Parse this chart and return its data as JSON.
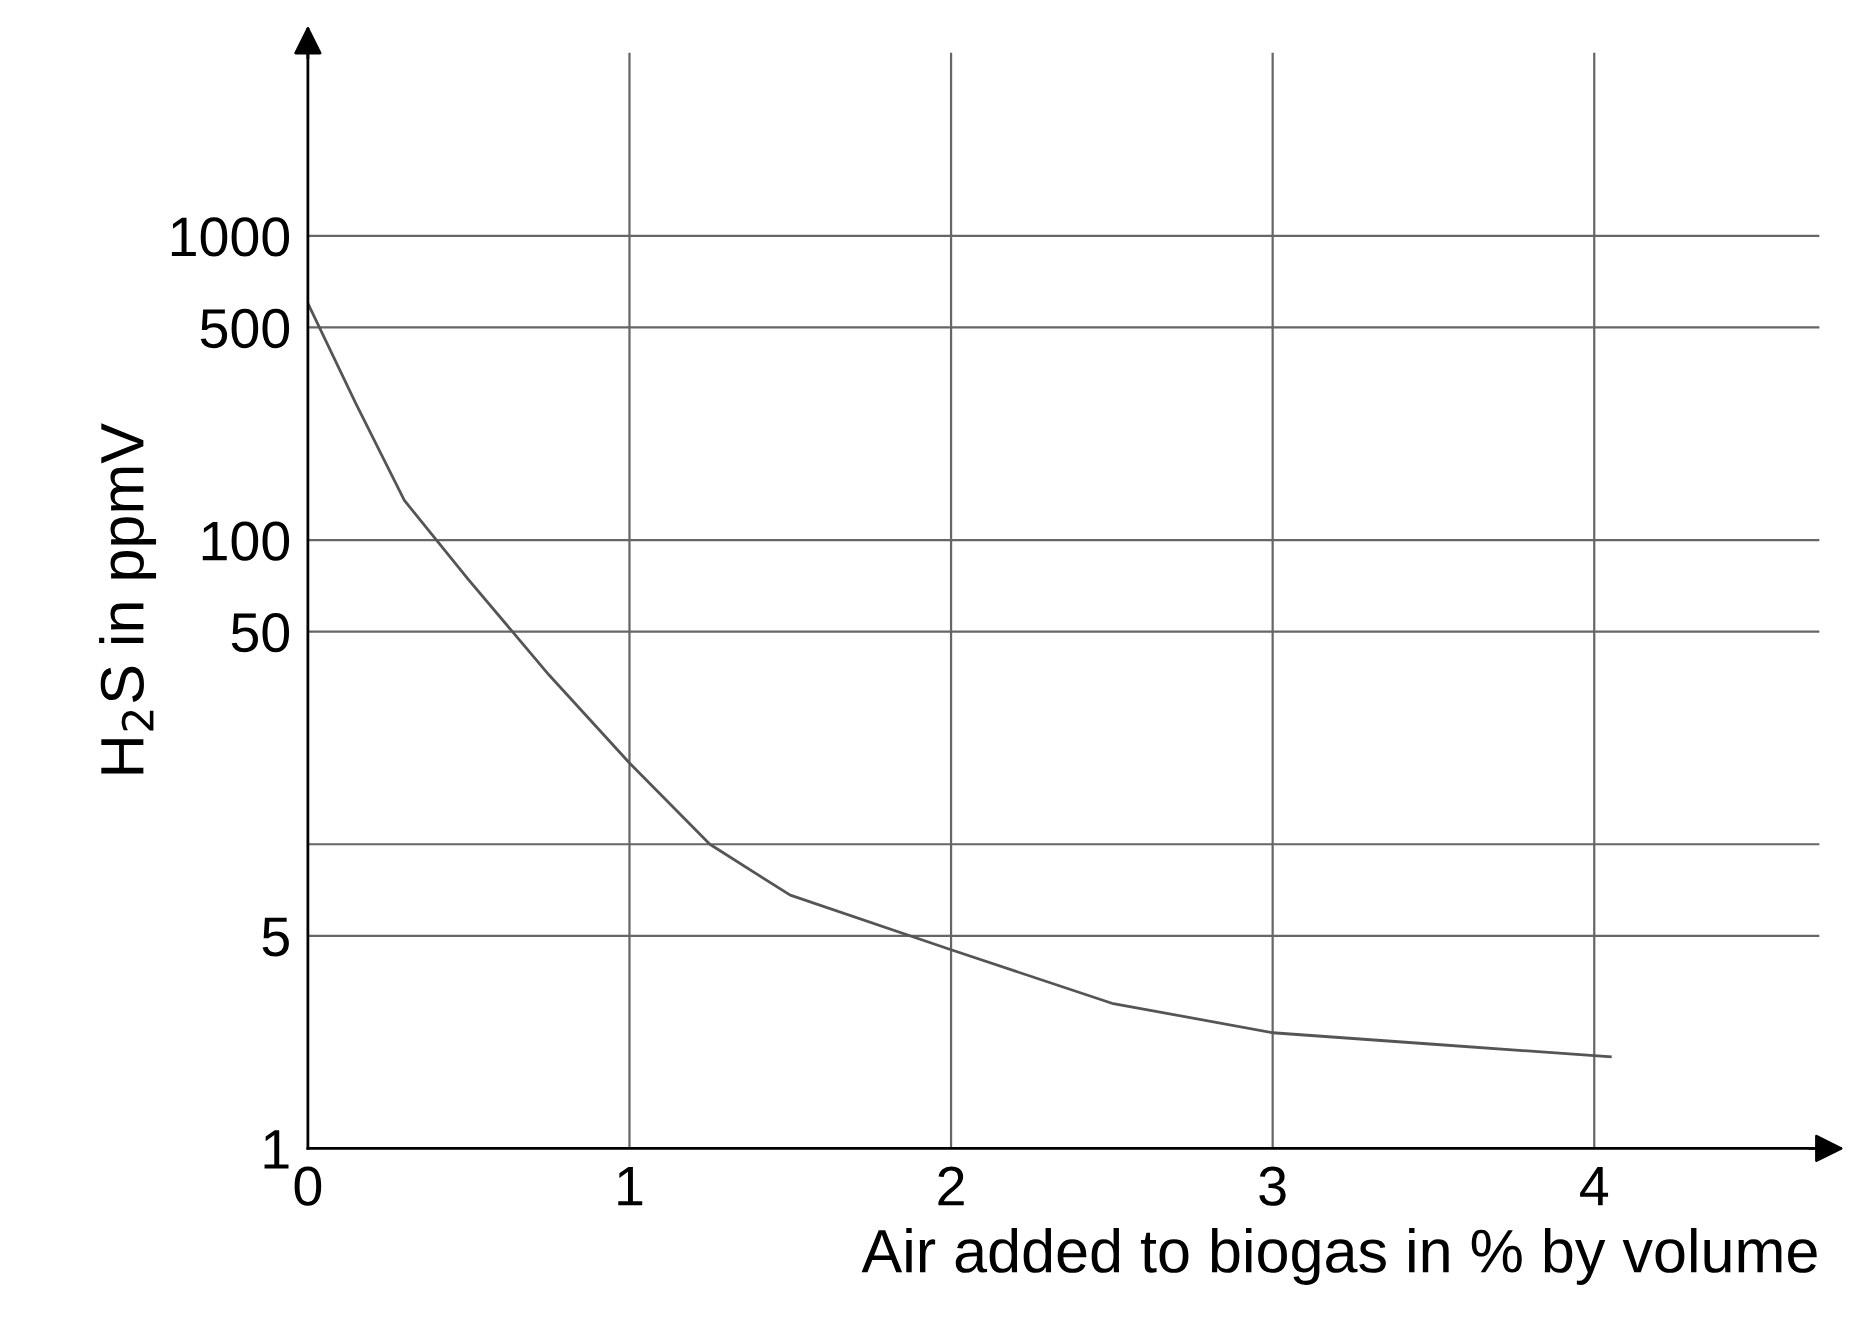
{
  "chart_data": {
    "type": "line",
    "xlabel": "Air added to biogas in % by volume",
    "ylabel": "H$_{2}$S in ppmV",
    "x": [
      0,
      0.15,
      0.3,
      0.5,
      0.75,
      1,
      1.25,
      1.5,
      2,
      2.5,
      3,
      3.5,
      4.05
    ],
    "series": [
      {
        "color": "#555555",
        "values": [
          600,
          280,
          135,
          74,
          36,
          18.5,
          10,
          6.8,
          4.5,
          3.0,
          2.4,
          2.2,
          2.0
        ]
      }
    ],
    "log": "y",
    "xlim": [
      0,
      4.7
    ],
    "ylim": [
      1,
      4000
    ],
    "xticks": [
      0,
      1,
      2,
      3,
      4
    ],
    "yticks": [
      1,
      5,
      {
        "value": 10,
        "label": null
      },
      50,
      100,
      500,
      1000
    ],
    "grid": true,
    "marker": "none",
    "line_style": "solid"
  }
}
